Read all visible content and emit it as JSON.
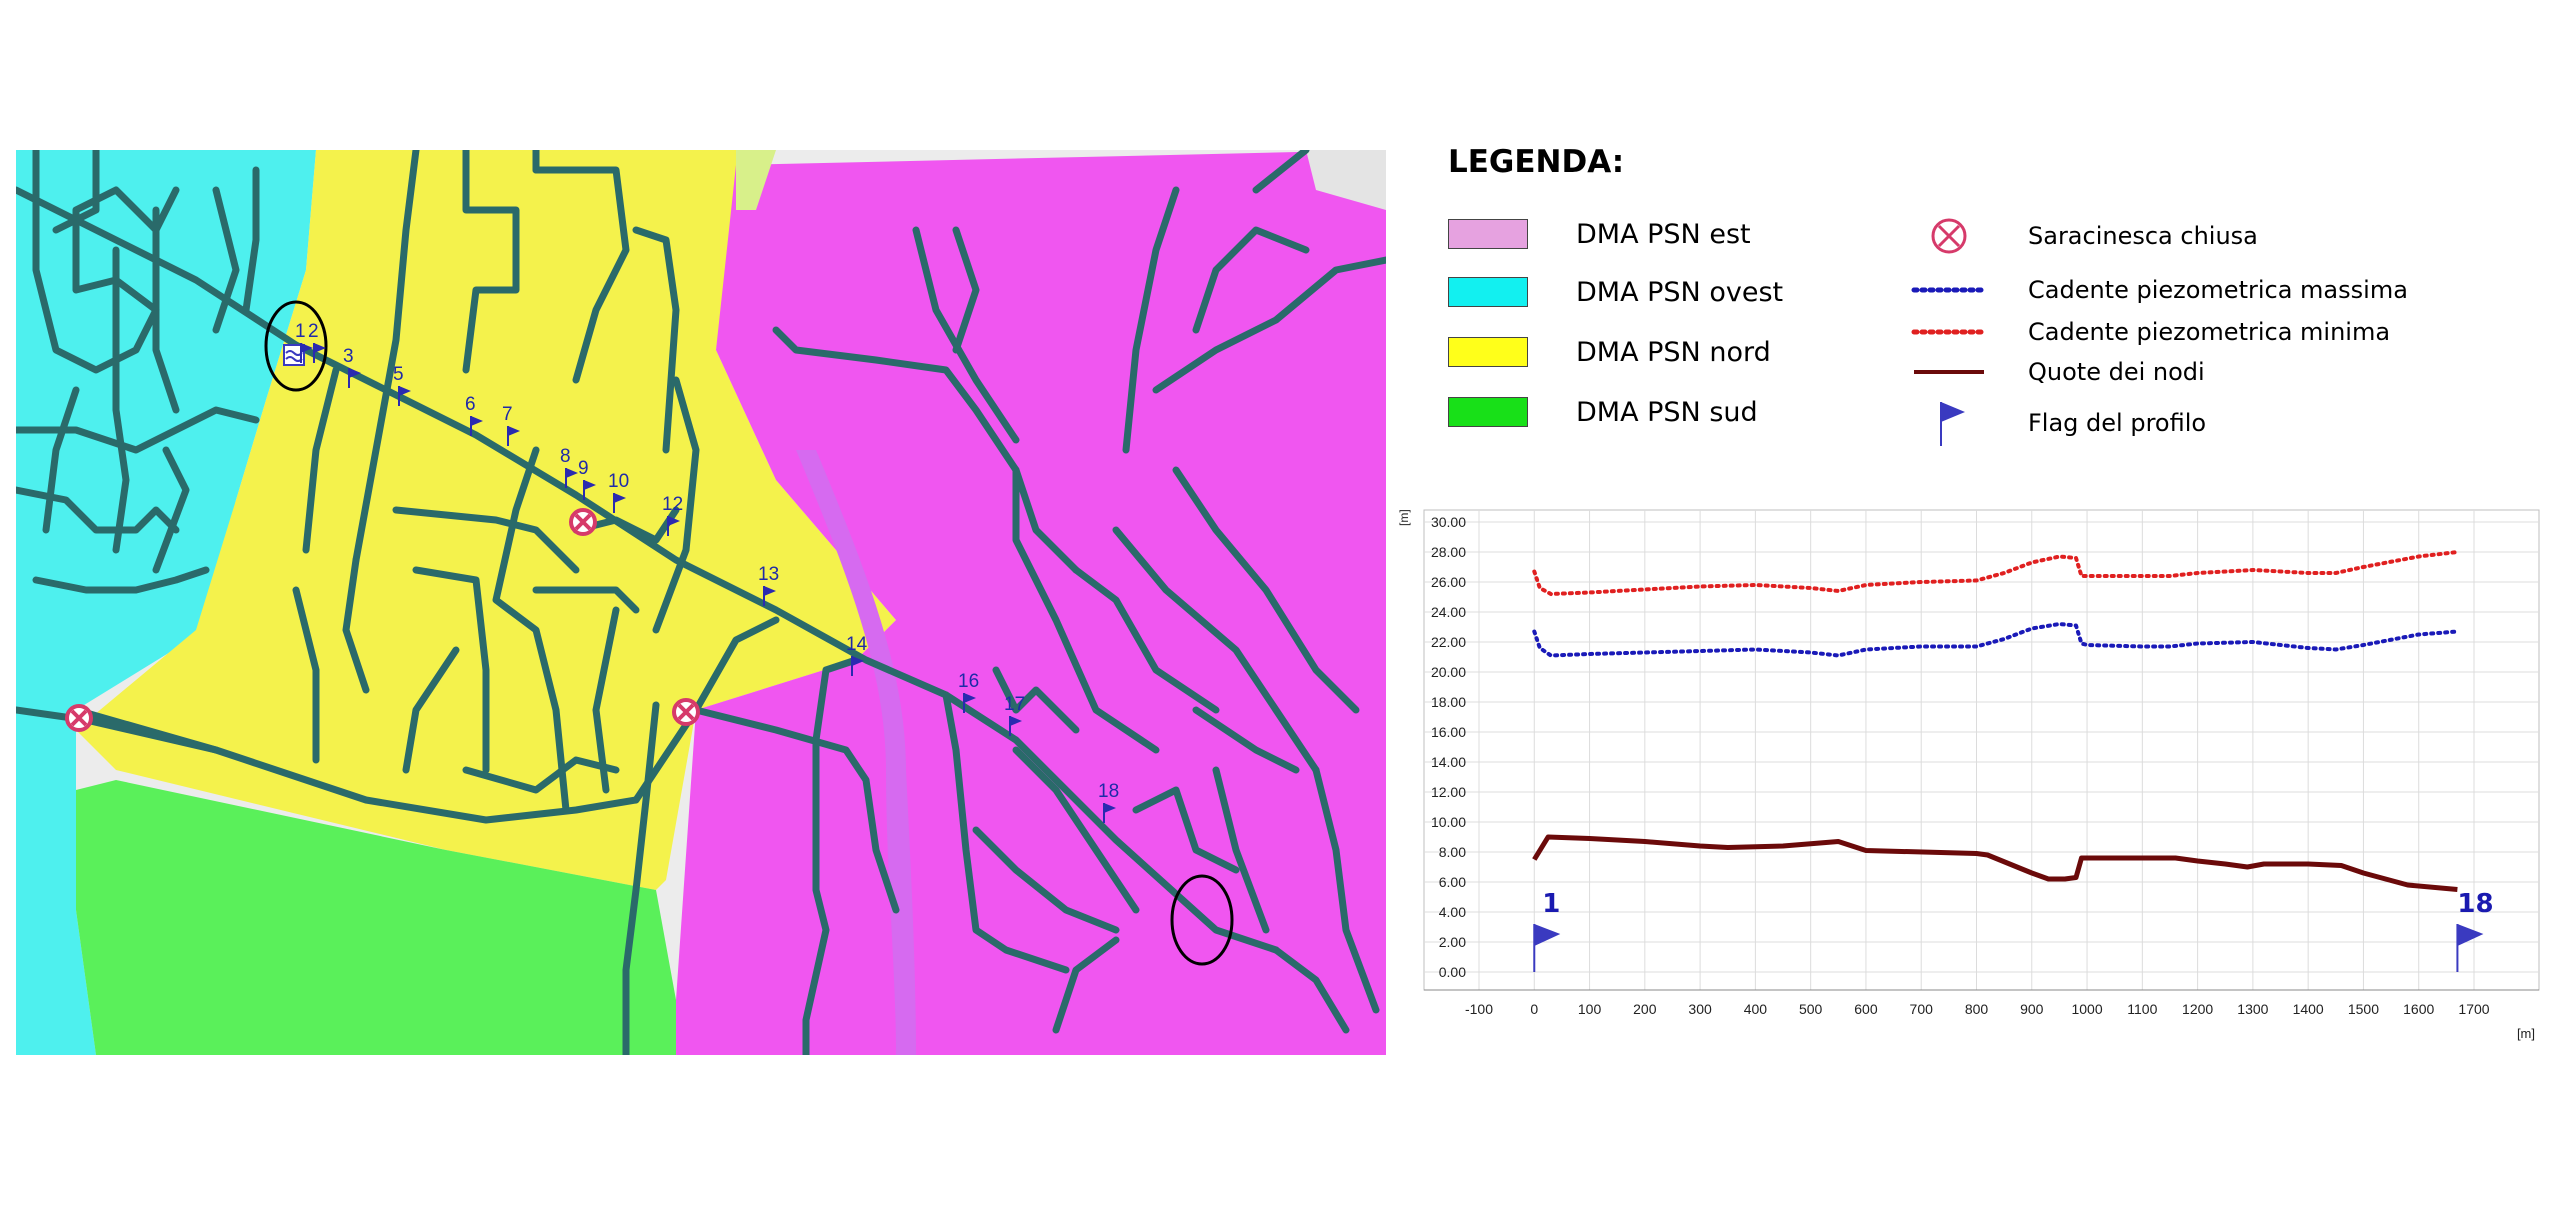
{
  "legend": {
    "title": "LEGENDA:",
    "zones": [
      {
        "label": "DMA PSN est",
        "color": "#e6a2e0"
      },
      {
        "label": "DMA PSN ovest",
        "color": "#12f0f0"
      },
      {
        "label": "DMA PSN nord",
        "color": "#ffff1a"
      },
      {
        "label": "DMA PSN sud",
        "color": "#18e018"
      }
    ],
    "symbols": [
      {
        "label": "Saracinesca chiusa",
        "icon": "closed-valve-icon",
        "color": "#d63a6a"
      },
      {
        "label": "Cadente piezometrica massima",
        "icon": "dotted-line-icon",
        "color": "#1a1ab8"
      },
      {
        "label": "Cadente piezometrica minima",
        "icon": "dotted-line-icon",
        "color": "#e02020"
      },
      {
        "label": "Quote dei nodi",
        "icon": "solid-line-icon",
        "color": "#6b0a0a"
      },
      {
        "label": "Flag del profilo",
        "icon": "flag-icon",
        "color": "#3a3ac0"
      }
    ]
  },
  "map": {
    "zone_colors": {
      "ovest": "#4ef0ee",
      "nord": "#f4f24c",
      "est": "#f056f0",
      "sud": "#5af05a",
      "base": "#ececec",
      "pipe": "#2a6a6a"
    },
    "flag_labels": [
      "1",
      "2",
      "3",
      "5",
      "6",
      "7",
      "8",
      "9",
      "10",
      "12",
      "13",
      "14",
      "16",
      "17",
      "18"
    ]
  },
  "chart_data": {
    "type": "line",
    "ylabel": "[m]",
    "xlabel": "[m]",
    "xlim": [
      -100,
      1700
    ],
    "ylim": [
      0,
      30
    ],
    "xticks": [
      "-100",
      "0",
      "100",
      "200",
      "300",
      "400",
      "500",
      "600",
      "700",
      "800",
      "900",
      "1000",
      "1100",
      "1200",
      "1300",
      "1400",
      "1500",
      "1600",
      "1700"
    ],
    "yticks": [
      "0.00",
      "2.00",
      "4.00",
      "6.00",
      "8.00",
      "10.00",
      "12.00",
      "14.00",
      "16.00",
      "18.00",
      "20.00",
      "22.00",
      "24.00",
      "26.00",
      "28.00",
      "30.00"
    ],
    "grid": true,
    "series": [
      {
        "name": "Cadente piezometrica minima",
        "color": "#e02020",
        "style": "dotted",
        "x": [
          0,
          10,
          30,
          100,
          200,
          300,
          400,
          500,
          550,
          600,
          700,
          800,
          850,
          900,
          950,
          980,
          990,
          1000,
          1100,
          1150,
          1200,
          1300,
          1400,
          1450,
          1500,
          1600,
          1670
        ],
        "y": [
          26.7,
          25.6,
          25.2,
          25.3,
          25.5,
          25.7,
          25.8,
          25.6,
          25.4,
          25.8,
          26.0,
          26.1,
          26.6,
          27.3,
          27.7,
          27.6,
          26.4,
          26.4,
          26.4,
          26.4,
          26.6,
          26.8,
          26.6,
          26.6,
          27.0,
          27.7,
          28.0
        ]
      },
      {
        "name": "Cadente piezometrica massima",
        "color": "#1a1ab8",
        "style": "dotted",
        "x": [
          0,
          10,
          30,
          100,
          200,
          300,
          400,
          500,
          550,
          600,
          700,
          800,
          850,
          900,
          950,
          980,
          990,
          1000,
          1100,
          1150,
          1200,
          1300,
          1400,
          1450,
          1500,
          1600,
          1670
        ],
        "y": [
          22.7,
          21.6,
          21.1,
          21.2,
          21.3,
          21.4,
          21.5,
          21.3,
          21.1,
          21.5,
          21.7,
          21.7,
          22.2,
          22.9,
          23.2,
          23.1,
          21.9,
          21.8,
          21.7,
          21.7,
          21.9,
          22.0,
          21.6,
          21.5,
          21.8,
          22.5,
          22.7
        ]
      },
      {
        "name": "Quote dei nodi",
        "color": "#6b0a0a",
        "style": "solid",
        "x": [
          0,
          25,
          100,
          200,
          300,
          350,
          450,
          550,
          600,
          800,
          820,
          880,
          900,
          930,
          960,
          980,
          990,
          1000,
          1100,
          1160,
          1200,
          1250,
          1290,
          1320,
          1400,
          1460,
          1500,
          1580,
          1670
        ],
        "y": [
          7.5,
          9.0,
          8.9,
          8.7,
          8.4,
          8.3,
          8.4,
          8.7,
          8.1,
          7.9,
          7.8,
          6.9,
          6.6,
          6.2,
          6.2,
          6.3,
          7.6,
          7.6,
          7.6,
          7.6,
          7.4,
          7.2,
          7.0,
          7.2,
          7.2,
          7.1,
          6.6,
          5.8,
          5.5
        ]
      }
    ],
    "profile_flags": [
      {
        "label": "1",
        "x": 0
      },
      {
        "label": "18",
        "x": 1670
      }
    ]
  }
}
